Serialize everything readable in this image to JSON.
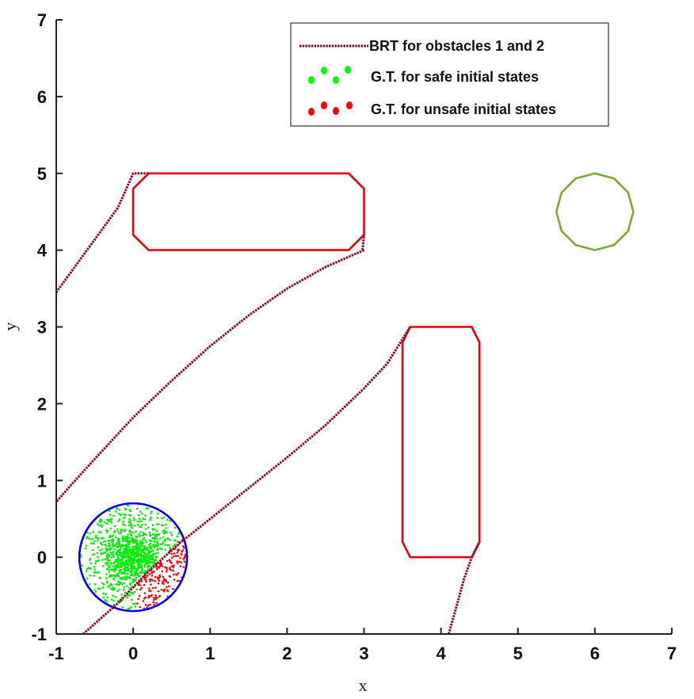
{
  "chart_data": {
    "type": "scatter",
    "title": "",
    "xlabel": "x",
    "ylabel": "y",
    "xlim": [
      -1,
      7
    ],
    "ylim": [
      -1,
      7
    ],
    "xticks": [
      "-1",
      "0",
      "1",
      "2",
      "3",
      "4",
      "5",
      "6",
      "7"
    ],
    "yticks": [
      "-1",
      "0",
      "1",
      "2",
      "3",
      "4",
      "5",
      "6",
      "7"
    ],
    "grid": false,
    "legend_position": "top-right",
    "legend": [
      {
        "label": "BRT for obstacles 1 and 2",
        "color": "#8b0a2a",
        "style": "dotted-line"
      },
      {
        "label": "G.T. for safe initial states",
        "color": "#00ff00",
        "style": "markers"
      },
      {
        "label": "G.T. for unsafe initial states",
        "color": "#ff0000",
        "style": "markers"
      }
    ],
    "colors": {
      "brt": "#8b0a2a",
      "obstacle": "#e8000b",
      "goal": "#77ac30",
      "initial_set": "#0000ee",
      "safe": "#00ee00",
      "unsafe": "#ff0000"
    },
    "brt_curves": [
      [
        [
          -1,
          3.45
        ],
        [
          -0.6,
          4.0
        ],
        [
          -0.2,
          4.55
        ],
        [
          0,
          5.0
        ],
        [
          0.2,
          5.0
        ]
      ],
      [
        [
          3.0,
          4.0
        ],
        [
          2.5,
          3.78
        ],
        [
          2.0,
          3.5
        ],
        [
          1.5,
          3.15
        ],
        [
          1.0,
          2.75
        ],
        [
          0.5,
          2.3
        ],
        [
          0,
          1.82
        ],
        [
          -0.5,
          1.28
        ],
        [
          -0.8,
          0.95
        ],
        [
          -1,
          0.72
        ]
      ],
      [
        [
          -0.65,
          -1.0
        ],
        [
          -0.2,
          -0.6
        ],
        [
          0.2,
          -0.18
        ],
        [
          0.6,
          0.18
        ],
        [
          1.0,
          0.5
        ],
        [
          1.5,
          0.9
        ],
        [
          2.0,
          1.3
        ],
        [
          2.5,
          1.72
        ],
        [
          3.0,
          2.2
        ],
        [
          3.3,
          2.52
        ],
        [
          3.6,
          3.0
        ]
      ],
      [
        [
          4.1,
          -1.0
        ],
        [
          4.2,
          -0.65
        ],
        [
          4.3,
          -0.28
        ],
        [
          4.4,
          0.0
        ],
        [
          4.5,
          0.2
        ]
      ],
      [
        [
          2.98,
          4.0
        ],
        [
          3.0,
          4.2
        ]
      ]
    ],
    "obstacles": [
      [
        [
          0.2,
          5.0
        ],
        [
          2.8,
          5.0
        ],
        [
          3.0,
          4.8
        ],
        [
          3.0,
          4.2
        ],
        [
          2.8,
          4.0
        ],
        [
          0.2,
          4.0
        ],
        [
          0.0,
          4.2
        ],
        [
          0.0,
          4.8
        ]
      ],
      [
        [
          3.6,
          3.0
        ],
        [
          4.4,
          3.0
        ],
        [
          4.5,
          2.8
        ],
        [
          4.5,
          0.2
        ],
        [
          4.4,
          0.0
        ],
        [
          3.6,
          0.0
        ],
        [
          3.5,
          0.2
        ],
        [
          3.5,
          2.8
        ]
      ]
    ],
    "goal_circle": {
      "center": [
        6,
        4.5
      ],
      "radius": 0.5,
      "sides": 12
    },
    "initial_circle": {
      "center": [
        0,
        0
      ],
      "radius": 0.7
    },
    "sample_count": 1200
  }
}
